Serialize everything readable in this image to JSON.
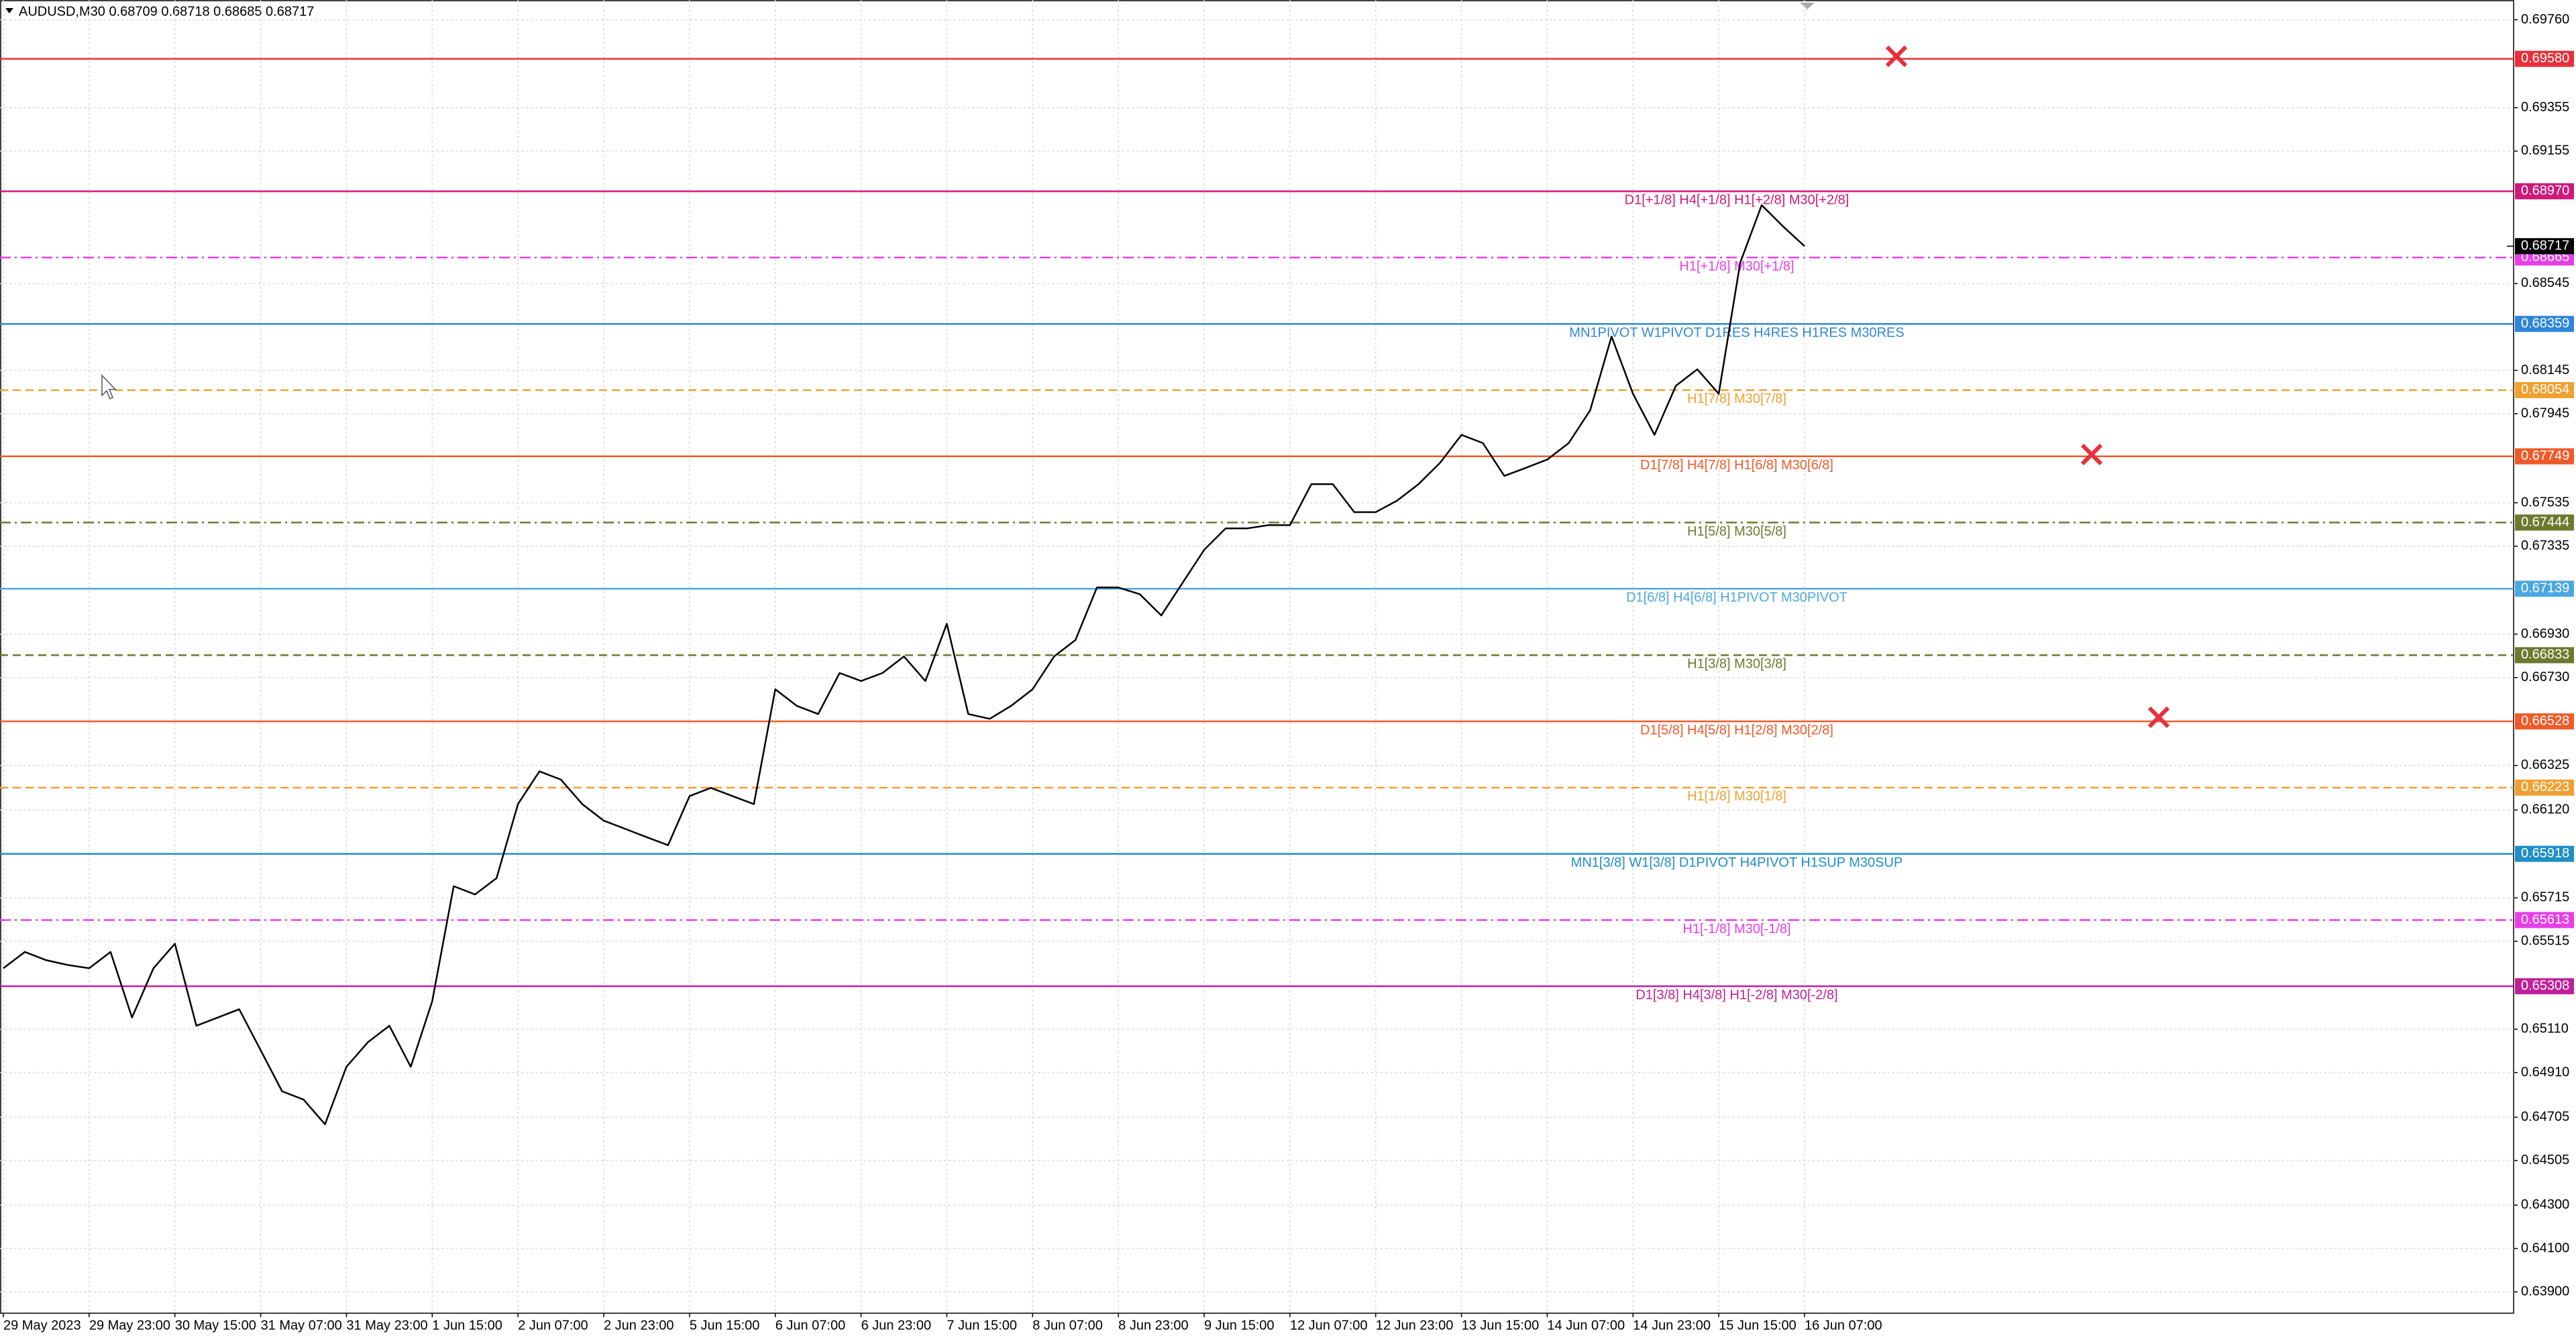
{
  "chart_data": {
    "type": "line",
    "title": "AUDUSD,M30  0.68709 0.68718 0.68685 0.68717",
    "ylim": [
      0.63802,
      0.69851
    ],
    "yticks": [
      {
        "value": 0.6976,
        "label": "0.69760"
      },
      0.69355,
      0.69155,
      0.68545,
      0.68145,
      0.67945,
      0.67535,
      0.67335,
      {
        "value": 0.6693,
        "label": "0.66930"
      },
      {
        "value": 0.6673,
        "label": "0.66730"
      },
      0.66325,
      {
        "value": 0.6612,
        "label": "0.66120"
      },
      0.65715,
      0.65515,
      {
        "value": 0.6511,
        "label": "0.65110"
      },
      {
        "value": 0.6491,
        "label": "0.64910"
      },
      0.64705,
      0.64505,
      {
        "value": 0.643,
        "label": "0.64300"
      },
      {
        "value": 0.641,
        "label": "0.64100"
      },
      {
        "value": 0.639,
        "label": "0.63900"
      }
    ],
    "grid": true,
    "categories": [
      "29 May 2023",
      null,
      null,
      null,
      "29 May 23:00",
      null,
      null,
      null,
      "30 May 15:00",
      null,
      null,
      null,
      "31 May 07:00",
      null,
      null,
      null,
      "31 May 23:00",
      null,
      null,
      null,
      "1 Jun 15:00",
      null,
      null,
      null,
      "2 Jun 07:00",
      null,
      null,
      null,
      "2 Jun 23:00",
      null,
      null,
      null,
      "5 Jun 15:00",
      null,
      null,
      null,
      "6 Jun 07:00",
      null,
      null,
      null,
      "6 Jun 23:00",
      null,
      null,
      null,
      "7 Jun 15:00",
      null,
      null,
      null,
      "8 Jun 07:00",
      null,
      null,
      null,
      "8 Jun 23:00",
      null,
      null,
      null,
      "9 Jun 15:00",
      null,
      null,
      null,
      "12 Jun 07:00",
      null,
      null,
      null,
      "12 Jun 23:00",
      null,
      null,
      null,
      "13 Jun 15:00",
      null,
      null,
      null,
      "14 Jun 07:00",
      null,
      null,
      null,
      "14 Jun 23:00",
      null,
      null,
      null,
      "15 Jun 15:00",
      null,
      null,
      null,
      "16 Jun 07:00"
    ],
    "series": [
      {
        "name": "AUDUSD",
        "color": "#000000",
        "values": [
          0.65391,
          0.65466,
          0.65428,
          0.65406,
          0.65391,
          0.65466,
          0.65164,
          0.65391,
          0.65504,
          0.65126,
          0.65164,
          0.65202,
          0.65013,
          0.64824,
          0.64786,
          0.64672,
          0.64937,
          0.6505,
          0.65126,
          0.64937,
          0.65239,
          0.65769,
          0.65731,
          0.65806,
          0.66147,
          0.66298,
          0.6626,
          0.66147,
          0.66071,
          0.66033,
          0.65995,
          0.65958,
          0.66184,
          0.66222,
          0.66184,
          0.66147,
          0.66676,
          0.666,
          0.66562,
          0.66751,
          0.66714,
          0.66751,
          0.66827,
          0.66714,
          0.66978,
          0.66562,
          0.6654,
          0.666,
          0.66676,
          0.66827,
          0.66903,
          0.67145,
          0.67145,
          0.67114,
          0.67016,
          0.67167,
          0.67318,
          0.67417,
          0.67417,
          0.67432,
          0.67432,
          0.67621,
          0.67621,
          0.67492,
          0.67492,
          0.67545,
          0.67621,
          0.67719,
          0.67848,
          0.6781,
          0.67659,
          0.67696,
          0.67734,
          0.6781,
          0.67961,
          0.68301,
          0.68037,
          0.67848,
          0.68074,
          0.6815,
          0.68037,
          0.68641,
          0.68906,
          0.68808,
          0.68717
        ]
      }
    ],
    "last_price": 0.68717,
    "levels": [
      {
        "price": 0.6958,
        "price_label": "0.69580",
        "color": "#e8303a",
        "style": "solid"
      },
      {
        "price": 0.6897,
        "price_label": "0.68970",
        "color": "#d0187a",
        "style": "solid",
        "text": "D1[+1/8] H4[+1/8] H1[+2/8] M30[+2/8]"
      },
      {
        "price": 0.68665,
        "color": "#e83ee8",
        "style": "dashdot",
        "text": "H1[+1/8] M30[+1/8]"
      },
      {
        "price": 0.68359,
        "color": "#2f86dc",
        "style": "solid",
        "text": "MN1PIVOT W1PIVOT D1RES H4RES H1RES M30RES"
      },
      {
        "price": 0.68054,
        "color": "#f0a030",
        "style": "dash",
        "text": "H1[7/8] M30[7/8]"
      },
      {
        "price": 0.67749,
        "color": "#f05a28",
        "style": "solid",
        "text": "D1[7/8] H4[7/8] H1[6/8] M30[6/8]"
      },
      {
        "price": 0.67444,
        "color": "#6b7a2e",
        "style": "dashdot",
        "text": "H1[5/8] M30[5/8]"
      },
      {
        "price": 0.67139,
        "color": "#4aa8e0",
        "style": "solid",
        "text": "D1[6/8] H4[6/8] H1PIVOT M30PIVOT"
      },
      {
        "price": 0.66833,
        "color": "#6b7a2e",
        "style": "dash",
        "text": "H1[3/8] M30[3/8]"
      },
      {
        "price": 0.66528,
        "color": "#f05a28",
        "style": "solid",
        "text": "D1[5/8] H4[5/8] H1[2/8] M30[2/8]"
      },
      {
        "price": 0.66223,
        "color": "#f0a030",
        "style": "dash",
        "text": "H1[1/8] M30[1/8]"
      },
      {
        "price": 0.65918,
        "color": "#1f8fc8",
        "style": "solid",
        "text": "MN1[3/8] W1[3/8] D1PIVOT H4PIVOT H1SUP M30SUP"
      },
      {
        "price": 0.65613,
        "color": "#e83ee8",
        "style": "dashdot",
        "text": "H1[-1/8] M30[-1/8]"
      },
      {
        "price": 0.65308,
        "color": "#c0209a",
        "style": "solid",
        "text": "D1[3/8] H4[3/8] H1[-2/8] M30[-2/8]"
      }
    ]
  }
}
